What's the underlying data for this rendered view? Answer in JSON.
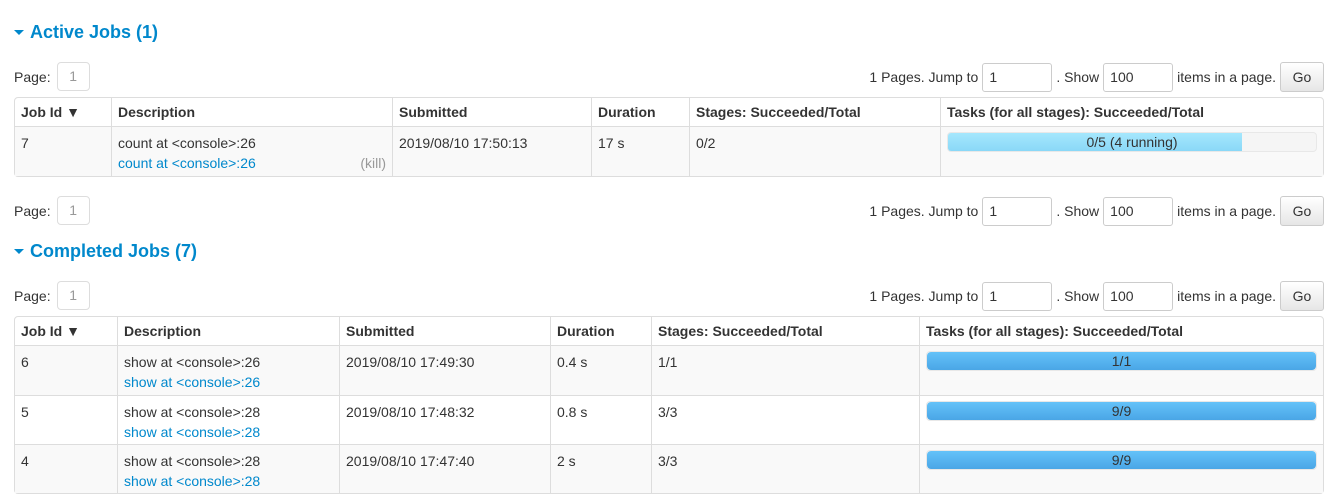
{
  "active": {
    "title": "Active Jobs (1)",
    "pager": {
      "page_label": "Page:",
      "page": "1",
      "pages_text": "1 Pages. Jump to",
      "jump_value": "1",
      "show_text": ". Show",
      "show_value": "100",
      "items_text": "items in a page.",
      "go": "Go"
    },
    "headers": [
      "Job Id ▼",
      "Description",
      "Submitted",
      "Duration",
      "Stages: Succeeded/Total",
      "Tasks (for all stages): Succeeded/Total"
    ],
    "rows": [
      {
        "id": "7",
        "desc": "count at <console>:26",
        "link": "count at <console>:26",
        "kill": "(kill)",
        "submitted": "2019/08/10 17:50:13",
        "duration": "17 s",
        "stages": "0/2",
        "tasks_label": "0/5 (4 running)",
        "succeeded": 0,
        "running": 4,
        "total": 5
      }
    ]
  },
  "active_bottom_pager": {
    "page_label": "Page:",
    "page": "1",
    "pages_text": "1 Pages. Jump to",
    "jump_value": "1",
    "show_text": ". Show",
    "show_value": "100",
    "items_text": "items in a page.",
    "go": "Go"
  },
  "completed": {
    "title": "Completed Jobs (7)",
    "pager": {
      "page_label": "Page:",
      "page": "1",
      "pages_text": "1 Pages. Jump to",
      "jump_value": "1",
      "show_text": ". Show",
      "show_value": "100",
      "items_text": "items in a page.",
      "go": "Go"
    },
    "headers": [
      "Job Id ▼",
      "Description",
      "Submitted",
      "Duration",
      "Stages: Succeeded/Total",
      "Tasks (for all stages): Succeeded/Total"
    ],
    "rows": [
      {
        "id": "6",
        "desc": "show at <console>:26",
        "link": "show at <console>:26",
        "submitted": "2019/08/10 17:49:30",
        "duration": "0.4 s",
        "stages": "1/1",
        "tasks_label": "1/1",
        "succeeded": 1,
        "running": 0,
        "total": 1
      },
      {
        "id": "5",
        "desc": "show at <console>:28",
        "link": "show at <console>:28",
        "submitted": "2019/08/10 17:48:32",
        "duration": "0.8 s",
        "stages": "3/3",
        "tasks_label": "9/9",
        "succeeded": 9,
        "running": 0,
        "total": 9
      },
      {
        "id": "4",
        "desc": "show at <console>:28",
        "link": "show at <console>:28",
        "submitted": "2019/08/10 17:47:40",
        "duration": "2 s",
        "stages": "3/3",
        "tasks_label": "9/9",
        "succeeded": 9,
        "running": 0,
        "total": 9
      }
    ]
  },
  "colors": {
    "accent": "#0088cc",
    "progress_done": "#4aa6e6",
    "progress_running": "#8ad8f7"
  }
}
